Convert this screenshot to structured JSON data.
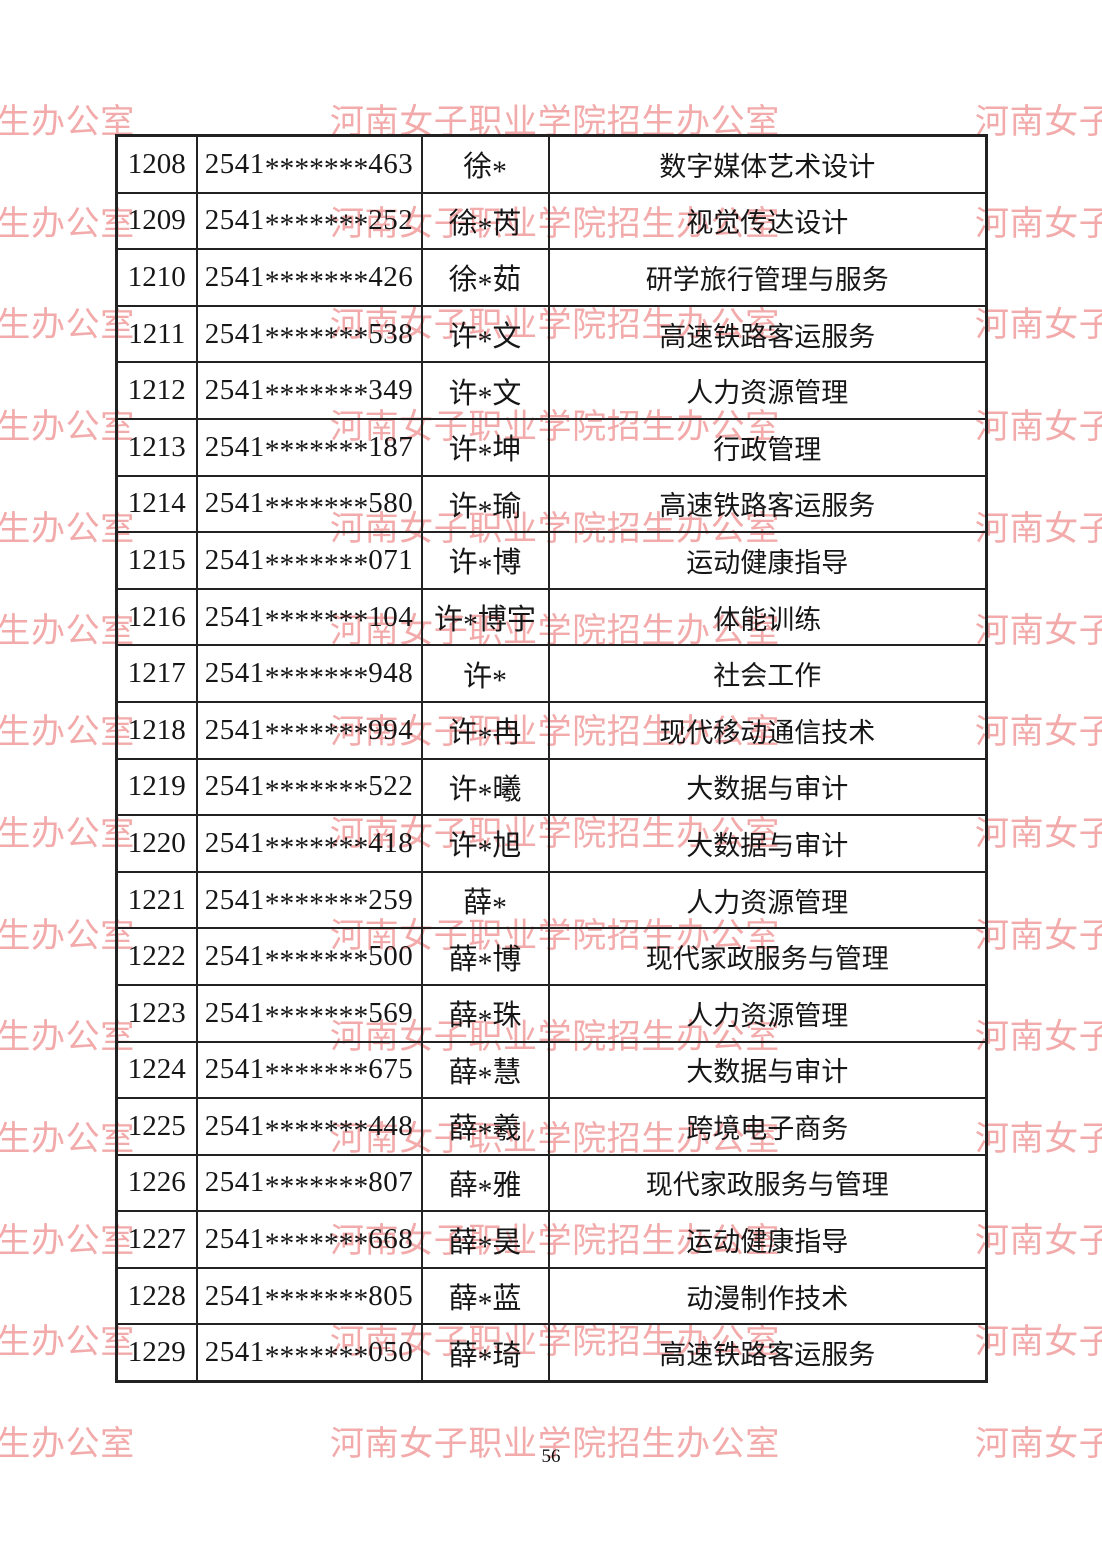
{
  "page": {
    "number": "56"
  },
  "watermark": {
    "text": "河南女子职业学院招生办公室",
    "color": "#f2a6a6"
  },
  "table": {
    "rows": [
      {
        "no": "1208",
        "exam_id": "2541*******463",
        "name": "徐*",
        "major": "数字媒体艺术设计"
      },
      {
        "no": "1209",
        "exam_id": "2541*******252",
        "name": "徐*芮",
        "major": "视觉传达设计"
      },
      {
        "no": "1210",
        "exam_id": "2541*******426",
        "name": "徐*茹",
        "major": "研学旅行管理与服务"
      },
      {
        "no": "1211",
        "exam_id": "2541*******538",
        "name": "许*文",
        "major": "高速铁路客运服务"
      },
      {
        "no": "1212",
        "exam_id": "2541*******349",
        "name": "许*文",
        "major": "人力资源管理"
      },
      {
        "no": "1213",
        "exam_id": "2541*******187",
        "name": "许*坤",
        "major": "行政管理"
      },
      {
        "no": "1214",
        "exam_id": "2541*******580",
        "name": "许*瑜",
        "major": "高速铁路客运服务"
      },
      {
        "no": "1215",
        "exam_id": "2541*******071",
        "name": "许*博",
        "major": "运动健康指导"
      },
      {
        "no": "1216",
        "exam_id": "2541*******104",
        "name": "许*博宇",
        "major": "体能训练"
      },
      {
        "no": "1217",
        "exam_id": "2541*******948",
        "name": "许*",
        "major": "社会工作"
      },
      {
        "no": "1218",
        "exam_id": "2541*******994",
        "name": "许*冉",
        "major": "现代移动通信技术"
      },
      {
        "no": "1219",
        "exam_id": "2541*******522",
        "name": "许*曦",
        "major": "大数据与审计"
      },
      {
        "no": "1220",
        "exam_id": "2541*******418",
        "name": "许*旭",
        "major": "大数据与审计"
      },
      {
        "no": "1221",
        "exam_id": "2541*******259",
        "name": "薛*",
        "major": "人力资源管理"
      },
      {
        "no": "1222",
        "exam_id": "2541*******500",
        "name": "薛*博",
        "major": "现代家政服务与管理"
      },
      {
        "no": "1223",
        "exam_id": "2541*******569",
        "name": "薛*珠",
        "major": "人力资源管理"
      },
      {
        "no": "1224",
        "exam_id": "2541*******675",
        "name": "薛*慧",
        "major": "大数据与审计"
      },
      {
        "no": "1225",
        "exam_id": "2541*******448",
        "name": "薛*羲",
        "major": "跨境电子商务"
      },
      {
        "no": "1226",
        "exam_id": "2541*******807",
        "name": "薛*雅",
        "major": "现代家政服务与管理"
      },
      {
        "no": "1227",
        "exam_id": "2541*******668",
        "name": "薛*昊",
        "major": "运动健康指导"
      },
      {
        "no": "1228",
        "exam_id": "2541*******805",
        "name": "薛*蓝",
        "major": "动漫制作技术"
      },
      {
        "no": "1229",
        "exam_id": "2541*******050",
        "name": "薛*琦",
        "major": "高速铁路客运服务"
      }
    ]
  }
}
